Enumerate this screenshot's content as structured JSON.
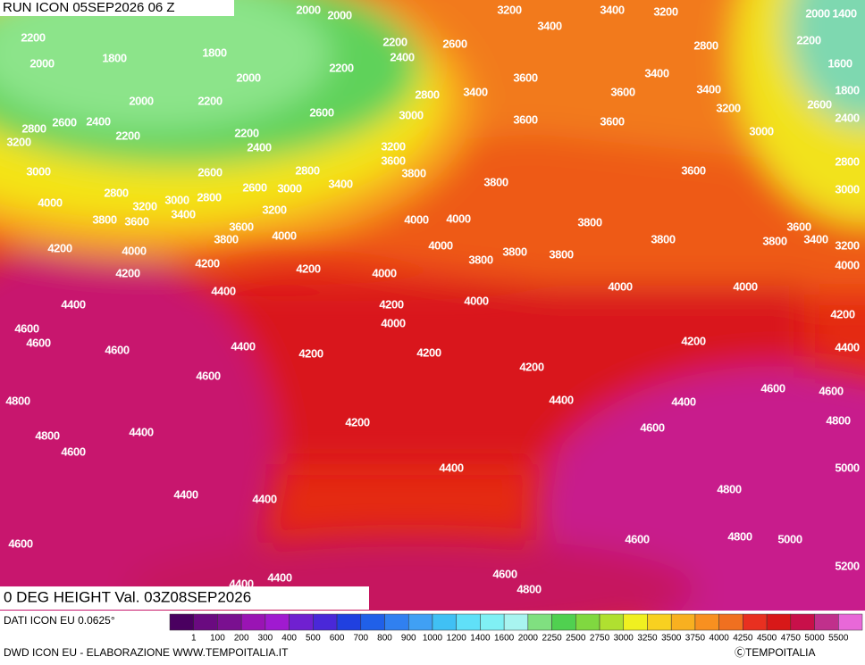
{
  "header": {
    "run_label": "RUN ICON 05SEP2026 06 Z"
  },
  "footer": {
    "product_label": "0 DEG HEIGHT Val. 03Z08SEP2026",
    "data_source": "DATI ICON EU 0.0625°",
    "credit": "DWD ICON EU - ELABORAZIONE WWW.TEMPOITALIA.IT",
    "copyright": "ⒸTEMPOITALIA"
  },
  "legend": {
    "colors": [
      "#4a0060",
      "#6a0a80",
      "#7a1090",
      "#9a14b4",
      "#a01ad0",
      "#7020d0",
      "#4a28d8",
      "#2040e0",
      "#2060e8",
      "#3080f0",
      "#40a0f4",
      "#40c0f4",
      "#60e0f8",
      "#80f0f4",
      "#a8f4f0",
      "#80e080",
      "#50d050",
      "#80d840",
      "#b0e030",
      "#f0f020",
      "#f8d020",
      "#f8b020",
      "#f89020",
      "#f07020",
      "#e83020",
      "#d81818",
      "#c8104a",
      "#c0308c",
      "#e868d8"
    ],
    "labels": [
      1,
      100,
      200,
      300,
      400,
      500,
      600,
      700,
      800,
      900,
      1000,
      1200,
      1400,
      1600,
      2000,
      2250,
      2500,
      2750,
      3000,
      3250,
      3500,
      3750,
      4000,
      4250,
      4500,
      4750,
      5000,
      5500
    ]
  },
  "map": {
    "contour_labels": [
      2000,
      2000,
      3200,
      3400,
      3200,
      2000,
      1400,
      2200,
      3400,
      2200,
      2600,
      2800,
      2200,
      2000,
      1800,
      1800,
      2400,
      2200,
      2000,
      3600,
      3400,
      1600,
      1800,
      2800,
      3400,
      3600,
      3400,
      2000,
      2200,
      2600,
      3200,
      2600,
      3000,
      3600,
      3600,
      2400,
      2800,
      2600,
      2400,
      2200,
      2200,
      3000,
      3200,
      3200,
      2400,
      3600,
      2800,
      3000,
      2800,
      2600,
      3800,
      3600,
      3400,
      3800,
      2800,
      2600,
      3000,
      3000,
      3200,
      3000,
      2800,
      4000,
      3200,
      3400,
      3800,
      3600,
      4000,
      4000,
      3800,
      3600,
      3800,
      4000,
      3600,
      3800,
      3800,
      3400,
      3200,
      4200,
      4000,
      4000,
      3800,
      3800,
      3800,
      4200,
      4000,
      4200,
      4200,
      4000,
      4400,
      4000,
      4000,
      4400,
      4200,
      4000,
      4200,
      4600,
      4600,
      4000,
      4400,
      4600,
      4200,
      4400,
      4200,
      4200,
      4200,
      4600,
      4600,
      4600,
      4800,
      4400,
      4400,
      4800,
      4200,
      4400,
      4800,
      4600,
      4600,
      5000,
      4400,
      4800,
      4400,
      4400,
      4600,
      4600,
      4800,
      5000,
      5200,
      4600,
      4400,
      4400,
      4800
    ]
  }
}
